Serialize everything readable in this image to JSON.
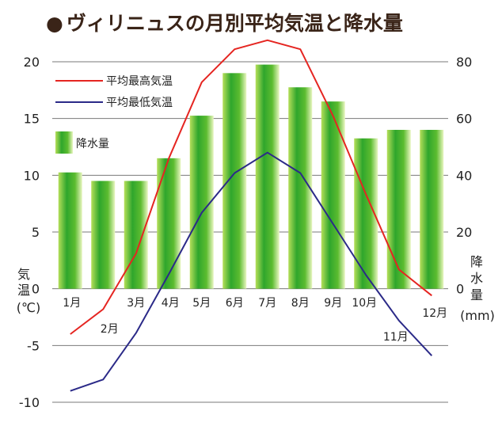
{
  "title_bullet": "●",
  "title": "ヴィリニュスの月別平均気温と降水量",
  "chart_data": {
    "type": "bar+line",
    "categories": [
      "1月",
      "2月",
      "3月",
      "4月",
      "5月",
      "6月",
      "7月",
      "8月",
      "9月",
      "10月",
      "11月",
      "12月"
    ],
    "series": [
      {
        "name": "平均最高気温",
        "type": "line",
        "axis": "left",
        "color": "#e52521",
        "values": [
          -4,
          -1.8,
          3.1,
          11.5,
          18.2,
          21.1,
          21.9,
          21.1,
          15.2,
          8.3,
          1.7,
          -0.6
        ]
      },
      {
        "name": "平均最低気温",
        "type": "line",
        "axis": "left",
        "color": "#2b2a88",
        "values": [
          -9,
          -8.0,
          -3.9,
          1.3,
          6.7,
          10.2,
          12.0,
          10.2,
          5.7,
          1.2,
          -2.8,
          -5.9
        ]
      },
      {
        "name": "降水量",
        "type": "bar",
        "axis": "right",
        "color": "#5cb82a",
        "values": [
          41,
          38,
          38,
          46,
          61,
          76,
          79,
          71,
          66,
          53,
          56,
          56
        ]
      }
    ],
    "y_left": {
      "label": [
        "気",
        "温",
        "(℃)"
      ],
      "range": [
        -10,
        20
      ],
      "ticks": [
        "20",
        "15",
        "10",
        "5",
        "0",
        "-5",
        "-10"
      ]
    },
    "y_right": {
      "label": [
        "降",
        "水",
        "量",
        "(mm)"
      ],
      "range": [
        0,
        80
      ],
      "ticks": [
        "80",
        "60",
        "40",
        "20",
        "0"
      ]
    },
    "legend_placement": "top-left",
    "grid": "horizontal"
  }
}
